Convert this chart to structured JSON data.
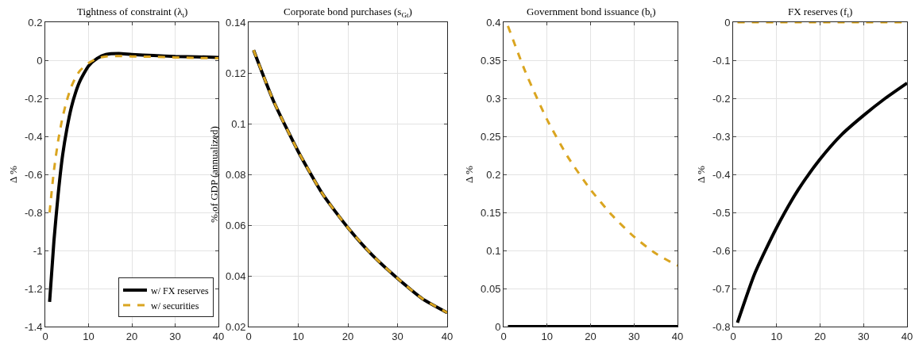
{
  "chart_data": [
    {
      "type": "line",
      "title": "Tightness of constraint (λ$_{t}$)",
      "ylabel": "Δ %",
      "x": [
        1,
        2,
        3,
        4,
        5,
        6,
        7,
        8,
        10,
        12,
        14,
        17,
        20,
        25,
        30,
        35,
        40
      ],
      "xlim": [
        0,
        40
      ],
      "xticks": [
        0,
        10,
        20,
        30,
        40
      ],
      "ylim": [
        -1.4,
        0.2
      ],
      "yticks": [
        -1.4,
        -1.2,
        -1,
        -0.8,
        -0.6,
        -0.4,
        -0.2,
        0,
        0.2
      ],
      "grid": true,
      "legend": "bottom right",
      "series": [
        {
          "name": "w/ FX reserves",
          "color": "#000000",
          "line_style": "solid",
          "values": [
            -1.27,
            -0.95,
            -0.7,
            -0.5,
            -0.36,
            -0.25,
            -0.17,
            -0.11,
            -0.03,
            0.01,
            0.03,
            0.035,
            0.03,
            0.025,
            0.02,
            0.018,
            0.015
          ]
        },
        {
          "name": "w/ securities",
          "color": "#daa520",
          "line_style": "dashed",
          "values": [
            -0.8,
            -0.58,
            -0.42,
            -0.3,
            -0.21,
            -0.14,
            -0.09,
            -0.055,
            -0.015,
            0.01,
            0.02,
            0.022,
            0.02,
            0.018,
            0.015,
            0.012,
            0.01
          ]
        }
      ]
    },
    {
      "type": "line",
      "title": "Corporate bond purchases (s$_{Gt}$)",
      "ylabel": "% of GDP (annualized)",
      "x": [
        1,
        5,
        10,
        15,
        20,
        25,
        30,
        35,
        40
      ],
      "xlim": [
        0,
        40
      ],
      "xticks": [
        0,
        10,
        20,
        30,
        40
      ],
      "ylim": [
        0.02,
        0.14
      ],
      "yticks": [
        0.02,
        0.04,
        0.06,
        0.08,
        0.1,
        0.12,
        0.14
      ],
      "grid": true,
      "series": [
        {
          "color": "#000000",
          "line_style": "solid",
          "values": [
            0.129,
            0.109,
            0.089,
            0.072,
            0.059,
            0.048,
            0.039,
            0.031,
            0.0255
          ]
        },
        {
          "color": "#daa520",
          "line_style": "dashed",
          "values": [
            0.129,
            0.109,
            0.089,
            0.072,
            0.059,
            0.048,
            0.039,
            0.031,
            0.0255
          ]
        }
      ]
    },
    {
      "type": "line",
      "title": "Government bond issuance (b$_{t}$)",
      "ylabel": "Δ %",
      "x": [
        1,
        5,
        10,
        15,
        20,
        25,
        30,
        35,
        40
      ],
      "xlim": [
        0,
        40
      ],
      "xticks": [
        0,
        10,
        20,
        30,
        40
      ],
      "ylim": [
        0,
        0.4
      ],
      "yticks": [
        0,
        0.05,
        0.1,
        0.15,
        0.2,
        0.25,
        0.3,
        0.35,
        0.4
      ],
      "grid": true,
      "series": [
        {
          "color": "#000000",
          "line_style": "solid",
          "values": [
            0,
            0,
            0,
            0,
            0,
            0,
            0,
            0,
            0
          ]
        },
        {
          "color": "#daa520",
          "line_style": "dashed",
          "values": [
            0.395,
            0.335,
            0.272,
            0.221,
            0.18,
            0.146,
            0.118,
            0.096,
            0.08
          ]
        }
      ]
    },
    {
      "type": "line",
      "title": "FX reserves (f$_{t}$)",
      "ylabel": "Δ %",
      "x": [
        1,
        5,
        10,
        15,
        20,
        25,
        30,
        35,
        40
      ],
      "xlim": [
        0,
        40
      ],
      "xticks": [
        0,
        10,
        20,
        30,
        40
      ],
      "ylim": [
        -0.8,
        0
      ],
      "yticks": [
        -0.8,
        -0.7,
        -0.6,
        -0.5,
        -0.4,
        -0.3,
        -0.2,
        -0.1,
        0
      ],
      "grid": true,
      "series": [
        {
          "color": "#000000",
          "line_style": "solid",
          "values": [
            -0.79,
            -0.66,
            -0.54,
            -0.44,
            -0.36,
            -0.295,
            -0.245,
            -0.2,
            -0.16
          ]
        },
        {
          "color": "#daa520",
          "line_style": "dashed",
          "values": [
            0,
            0,
            0,
            0,
            0,
            0,
            0,
            0,
            0
          ]
        }
      ]
    }
  ]
}
